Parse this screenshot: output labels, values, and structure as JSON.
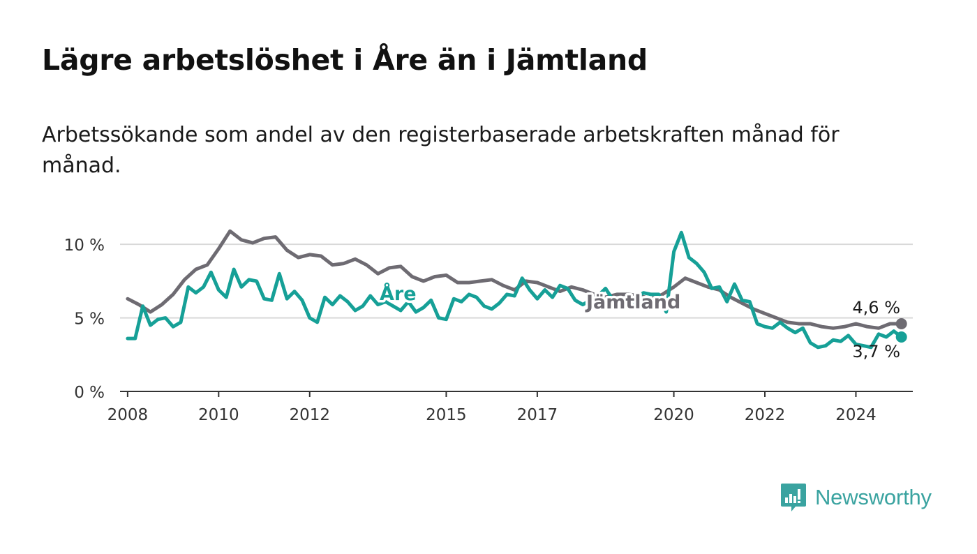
{
  "title": "Lägre arbetslöshet i Åre än i Jämtland",
  "subtitle": "Arbetssökande som andel av den registerbaserade arbetskraften månad för månad.",
  "brand": {
    "name": "Newsworthy",
    "icon": "bar-chart-speech-bubble-icon",
    "color": "#3aa3a0"
  },
  "chart_data": {
    "type": "line",
    "xlabel": "",
    "ylabel": "",
    "ylim": [
      0,
      12
    ],
    "grid": true,
    "x_range": [
      "2007-11",
      "2025-04"
    ],
    "y_ticks": [
      {
        "value": 0,
        "label": "0 %"
      },
      {
        "value": 5,
        "label": "5 %"
      },
      {
        "value": 10,
        "label": "10 %"
      }
    ],
    "x_ticks": [
      {
        "year": 2008,
        "label": "2008"
      },
      {
        "year": 2010,
        "label": "2010"
      },
      {
        "year": 2012,
        "label": "2012"
      },
      {
        "year": 2015,
        "label": "2015"
      },
      {
        "year": 2017,
        "label": "2017"
      },
      {
        "year": 2020,
        "label": "2020"
      },
      {
        "year": 2022,
        "label": "2022"
      },
      {
        "year": 2024,
        "label": "2024"
      }
    ],
    "series": [
      {
        "name": "Jämtland",
        "color": "#6e6b72",
        "end_label": "4,6 %",
        "points": [
          [
            "2008-01",
            6.3
          ],
          [
            "2008-04",
            5.9
          ],
          [
            "2008-07",
            5.4
          ],
          [
            "2008-10",
            5.9
          ],
          [
            "2009-01",
            6.6
          ],
          [
            "2009-04",
            7.6
          ],
          [
            "2009-07",
            8.3
          ],
          [
            "2009-10",
            8.6
          ],
          [
            "2010-01",
            9.7
          ],
          [
            "2010-04",
            10.9
          ],
          [
            "2010-07",
            10.3
          ],
          [
            "2010-10",
            10.1
          ],
          [
            "2011-01",
            10.4
          ],
          [
            "2011-04",
            10.5
          ],
          [
            "2011-07",
            9.6
          ],
          [
            "2011-10",
            9.1
          ],
          [
            "2012-01",
            9.3
          ],
          [
            "2012-04",
            9.2
          ],
          [
            "2012-07",
            8.6
          ],
          [
            "2012-10",
            8.7
          ],
          [
            "2013-01",
            9.0
          ],
          [
            "2013-04",
            8.6
          ],
          [
            "2013-07",
            8.0
          ],
          [
            "2013-10",
            8.4
          ],
          [
            "2014-01",
            8.5
          ],
          [
            "2014-04",
            7.8
          ],
          [
            "2014-07",
            7.5
          ],
          [
            "2014-10",
            7.8
          ],
          [
            "2015-01",
            7.9
          ],
          [
            "2015-04",
            7.4
          ],
          [
            "2015-07",
            7.4
          ],
          [
            "2015-10",
            7.5
          ],
          [
            "2016-01",
            7.6
          ],
          [
            "2016-04",
            7.2
          ],
          [
            "2016-07",
            6.9
          ],
          [
            "2016-10",
            7.5
          ],
          [
            "2017-01",
            7.4
          ],
          [
            "2017-04",
            7.1
          ],
          [
            "2017-07",
            6.8
          ],
          [
            "2017-10",
            7.1
          ],
          [
            "2018-01",
            6.9
          ],
          [
            "2018-04",
            6.6
          ],
          [
            "2018-07",
            6.4
          ],
          [
            "2018-10",
            6.6
          ],
          [
            "2019-01",
            6.6
          ],
          [
            "2019-04",
            6.5
          ],
          [
            "2019-07",
            6.3
          ],
          [
            "2019-10",
            6.6
          ],
          [
            "2020-01",
            7.1
          ],
          [
            "2020-04",
            7.7
          ],
          [
            "2020-07",
            7.4
          ],
          [
            "2020-10",
            7.1
          ],
          [
            "2021-01",
            6.9
          ],
          [
            "2021-04",
            6.4
          ],
          [
            "2021-07",
            6.0
          ],
          [
            "2021-10",
            5.6
          ],
          [
            "2022-01",
            5.3
          ],
          [
            "2022-04",
            5.0
          ],
          [
            "2022-07",
            4.7
          ],
          [
            "2022-10",
            4.6
          ],
          [
            "2023-01",
            4.6
          ],
          [
            "2023-04",
            4.4
          ],
          [
            "2023-07",
            4.3
          ],
          [
            "2023-10",
            4.4
          ],
          [
            "2024-01",
            4.6
          ],
          [
            "2024-04",
            4.4
          ],
          [
            "2024-07",
            4.3
          ],
          [
            "2024-10",
            4.6
          ],
          [
            "2025-01",
            4.6
          ]
        ]
      },
      {
        "name": "Åre",
        "color": "#16a097",
        "end_label": "3,7 %",
        "points": [
          [
            "2008-01",
            3.6
          ],
          [
            "2008-03",
            3.6
          ],
          [
            "2008-05",
            5.8
          ],
          [
            "2008-07",
            4.5
          ],
          [
            "2008-09",
            4.9
          ],
          [
            "2008-11",
            5.0
          ],
          [
            "2009-01",
            4.4
          ],
          [
            "2009-03",
            4.7
          ],
          [
            "2009-05",
            7.1
          ],
          [
            "2009-07",
            6.7
          ],
          [
            "2009-09",
            7.1
          ],
          [
            "2009-11",
            8.1
          ],
          [
            "2010-01",
            6.9
          ],
          [
            "2010-03",
            6.4
          ],
          [
            "2010-05",
            8.3
          ],
          [
            "2010-07",
            7.1
          ],
          [
            "2010-09",
            7.6
          ],
          [
            "2010-11",
            7.5
          ],
          [
            "2011-01",
            6.3
          ],
          [
            "2011-03",
            6.2
          ],
          [
            "2011-05",
            8.0
          ],
          [
            "2011-07",
            6.3
          ],
          [
            "2011-09",
            6.8
          ],
          [
            "2011-11",
            6.2
          ],
          [
            "2012-01",
            5.0
          ],
          [
            "2012-03",
            4.7
          ],
          [
            "2012-05",
            6.4
          ],
          [
            "2012-07",
            5.9
          ],
          [
            "2012-09",
            6.5
          ],
          [
            "2012-11",
            6.1
          ],
          [
            "2013-01",
            5.5
          ],
          [
            "2013-03",
            5.8
          ],
          [
            "2013-05",
            6.5
          ],
          [
            "2013-07",
            5.9
          ],
          [
            "2013-09",
            6.1
          ],
          [
            "2013-11",
            5.8
          ],
          [
            "2014-01",
            5.5
          ],
          [
            "2014-03",
            6.1
          ],
          [
            "2014-05",
            5.4
          ],
          [
            "2014-07",
            5.7
          ],
          [
            "2014-09",
            6.2
          ],
          [
            "2014-11",
            5.0
          ],
          [
            "2015-01",
            4.9
          ],
          [
            "2015-03",
            6.3
          ],
          [
            "2015-05",
            6.1
          ],
          [
            "2015-07",
            6.6
          ],
          [
            "2015-09",
            6.4
          ],
          [
            "2015-11",
            5.8
          ],
          [
            "2016-01",
            5.6
          ],
          [
            "2016-03",
            6.0
          ],
          [
            "2016-05",
            6.6
          ],
          [
            "2016-07",
            6.5
          ],
          [
            "2016-09",
            7.7
          ],
          [
            "2016-11",
            6.9
          ],
          [
            "2017-01",
            6.3
          ],
          [
            "2017-03",
            6.9
          ],
          [
            "2017-05",
            6.4
          ],
          [
            "2017-07",
            7.2
          ],
          [
            "2017-09",
            7.0
          ],
          [
            "2017-11",
            6.2
          ],
          [
            "2018-01",
            5.9
          ],
          [
            "2018-03",
            6.2
          ],
          [
            "2018-05",
            6.5
          ],
          [
            "2018-07",
            7.0
          ],
          [
            "2018-09",
            6.2
          ],
          [
            "2018-11",
            6.0
          ],
          [
            "2019-01",
            5.7
          ],
          [
            "2019-03",
            6.4
          ],
          [
            "2019-05",
            6.7
          ],
          [
            "2019-07",
            6.6
          ],
          [
            "2019-09",
            6.6
          ],
          [
            "2019-11",
            5.4
          ],
          [
            "2020-01",
            9.5
          ],
          [
            "2020-03",
            10.8
          ],
          [
            "2020-05",
            9.1
          ],
          [
            "2020-07",
            8.7
          ],
          [
            "2020-09",
            8.1
          ],
          [
            "2020-11",
            7.0
          ],
          [
            "2021-01",
            7.1
          ],
          [
            "2021-03",
            6.1
          ],
          [
            "2021-05",
            7.3
          ],
          [
            "2021-07",
            6.2
          ],
          [
            "2021-09",
            6.1
          ],
          [
            "2021-11",
            4.6
          ],
          [
            "2022-01",
            4.4
          ],
          [
            "2022-03",
            4.3
          ],
          [
            "2022-05",
            4.7
          ],
          [
            "2022-07",
            4.3
          ],
          [
            "2022-09",
            4.0
          ],
          [
            "2022-11",
            4.3
          ],
          [
            "2023-01",
            3.3
          ],
          [
            "2023-03",
            3.0
          ],
          [
            "2023-05",
            3.1
          ],
          [
            "2023-07",
            3.5
          ],
          [
            "2023-09",
            3.4
          ],
          [
            "2023-11",
            3.8
          ],
          [
            "2024-01",
            3.2
          ],
          [
            "2024-03",
            3.1
          ],
          [
            "2024-05",
            3.0
          ],
          [
            "2024-07",
            3.9
          ],
          [
            "2024-09",
            3.7
          ],
          [
            "2024-11",
            4.1
          ],
          [
            "2025-01",
            3.7
          ]
        ]
      }
    ]
  }
}
